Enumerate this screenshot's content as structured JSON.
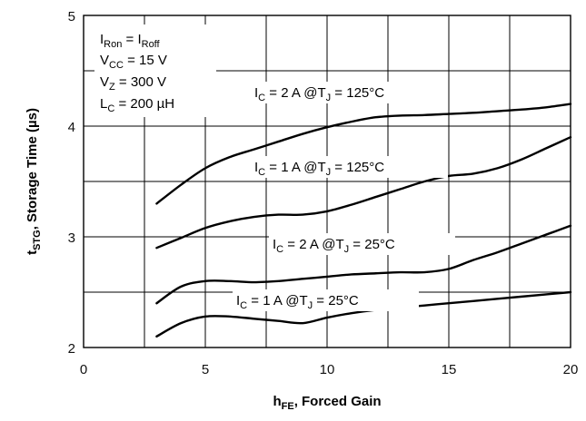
{
  "chart_data": {
    "type": "line",
    "ylabel": {
      "main": "t",
      "sub": "STG",
      "rest": ", Storage Time (µs)"
    },
    "xlabel": {
      "main": "h",
      "sub": "FE",
      "rest": ", Forced Gain"
    },
    "xlim": [
      0,
      20
    ],
    "ylim": [
      2,
      5
    ],
    "xticks": [
      "0",
      "5",
      "10",
      "15",
      "20"
    ],
    "yticks": [
      "2",
      "3",
      "4",
      "5"
    ],
    "grid": true,
    "conditions": [
      {
        "main": "I",
        "sub": "Ron",
        "mid": " = I",
        "sub2": "Roff",
        "rest": ""
      },
      {
        "main": "V",
        "sub": "CC",
        "mid": " = 15 V",
        "sub2": "",
        "rest": ""
      },
      {
        "main": "V",
        "sub": "Z",
        "mid": " = 300 V",
        "sub2": "",
        "rest": ""
      },
      {
        "main": "L",
        "sub": "C",
        "mid": " = 200 µH",
        "sub2": "",
        "rest": ""
      }
    ],
    "series": [
      {
        "name": "I_C = 2 A @T_J = 125°C",
        "label": {
          "a": "I",
          "as": "C",
          "b": " = 2 A @T",
          "bs": "J",
          "c": " = 125°C"
        },
        "x": [
          3,
          4,
          5,
          6,
          7,
          8,
          9,
          10,
          11,
          12,
          13,
          14,
          15,
          16,
          17,
          18,
          19,
          20
        ],
        "y": [
          3.3,
          3.47,
          3.62,
          3.72,
          3.79,
          3.86,
          3.93,
          3.99,
          4.04,
          4.08,
          4.095,
          4.1,
          4.11,
          4.12,
          4.135,
          4.15,
          4.17,
          4.2
        ]
      },
      {
        "name": "I_C = 1 A @T_J = 125°C",
        "label": {
          "a": "I",
          "as": "C",
          "b": " = 1 A @T",
          "bs": "J",
          "c": " = 125°C"
        },
        "x": [
          3,
          4,
          5,
          6,
          7,
          8,
          9,
          10,
          11,
          12,
          13,
          14,
          15,
          16,
          17,
          18,
          19,
          20
        ],
        "y": [
          2.9,
          2.99,
          3.08,
          3.14,
          3.18,
          3.2,
          3.2,
          3.23,
          3.29,
          3.36,
          3.43,
          3.5,
          3.55,
          3.57,
          3.62,
          3.7,
          3.8,
          3.9
        ]
      },
      {
        "name": "I_C = 2 A @T_J = 25°C",
        "label": {
          "a": "I",
          "as": "C",
          "b": " = 2 A @T",
          "bs": "J",
          "c": " = 25°C"
        },
        "x": [
          3,
          4,
          5,
          6,
          7,
          8,
          9,
          10,
          11,
          12,
          13,
          14,
          15,
          16,
          17,
          18,
          19,
          20
        ],
        "y": [
          2.4,
          2.55,
          2.6,
          2.6,
          2.59,
          2.6,
          2.62,
          2.64,
          2.66,
          2.67,
          2.68,
          2.68,
          2.71,
          2.79,
          2.86,
          2.94,
          3.02,
          3.1
        ]
      },
      {
        "name": "I_C = 1 A @T_J = 25°C",
        "label": {
          "a": "I",
          "as": "C",
          "b": " = 1 A @T",
          "bs": "J",
          "c": " = 25°C"
        },
        "x": [
          3,
          4,
          5,
          6,
          7,
          8,
          9,
          10,
          11,
          12,
          13,
          14,
          15,
          16,
          17,
          18,
          19,
          20
        ],
        "y": [
          2.1,
          2.22,
          2.28,
          2.28,
          2.26,
          2.24,
          2.22,
          2.27,
          2.31,
          2.34,
          2.36,
          2.38,
          2.4,
          2.42,
          2.44,
          2.46,
          2.48,
          2.5
        ]
      }
    ]
  }
}
